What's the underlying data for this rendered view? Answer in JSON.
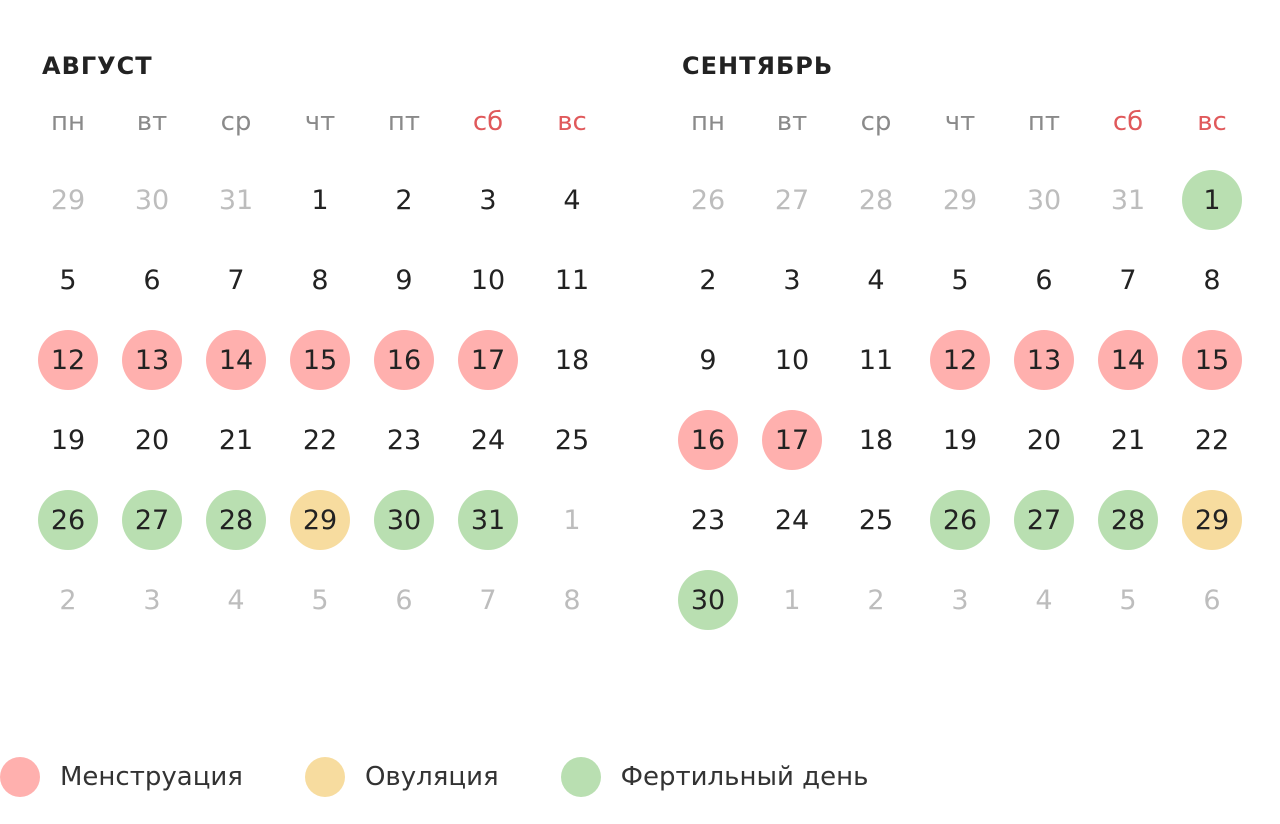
{
  "colors": {
    "menstruation": "#ffb0ae",
    "ovulation": "#f7dc9f",
    "fertile": "#b9dfb1",
    "weekend": "#e0595b",
    "muted": "#bdbdbd"
  },
  "weekdays": [
    "пн",
    "вт",
    "ср",
    "чт",
    "пт",
    "сб",
    "вс"
  ],
  "months": [
    {
      "title": "АВГУСТ",
      "days": [
        {
          "n": "29",
          "muted": true
        },
        {
          "n": "30",
          "muted": true
        },
        {
          "n": "31",
          "muted": true
        },
        {
          "n": "1"
        },
        {
          "n": "2"
        },
        {
          "n": "3"
        },
        {
          "n": "4"
        },
        {
          "n": "5"
        },
        {
          "n": "6"
        },
        {
          "n": "7"
        },
        {
          "n": "8"
        },
        {
          "n": "9"
        },
        {
          "n": "10"
        },
        {
          "n": "11"
        },
        {
          "n": "12",
          "type": "menstruation"
        },
        {
          "n": "13",
          "type": "menstruation"
        },
        {
          "n": "14",
          "type": "menstruation"
        },
        {
          "n": "15",
          "type": "menstruation"
        },
        {
          "n": "16",
          "type": "menstruation"
        },
        {
          "n": "17",
          "type": "menstruation"
        },
        {
          "n": "18"
        },
        {
          "n": "19"
        },
        {
          "n": "20"
        },
        {
          "n": "21"
        },
        {
          "n": "22"
        },
        {
          "n": "23"
        },
        {
          "n": "24"
        },
        {
          "n": "25"
        },
        {
          "n": "26",
          "type": "fertile"
        },
        {
          "n": "27",
          "type": "fertile"
        },
        {
          "n": "28",
          "type": "fertile"
        },
        {
          "n": "29",
          "type": "ovulation"
        },
        {
          "n": "30",
          "type": "fertile"
        },
        {
          "n": "31",
          "type": "fertile"
        },
        {
          "n": "1",
          "muted": true
        },
        {
          "n": "2",
          "muted": true
        },
        {
          "n": "3",
          "muted": true
        },
        {
          "n": "4",
          "muted": true
        },
        {
          "n": "5",
          "muted": true
        },
        {
          "n": "6",
          "muted": true
        },
        {
          "n": "7",
          "muted": true
        },
        {
          "n": "8",
          "muted": true
        }
      ]
    },
    {
      "title": "СЕНТЯБРЬ",
      "days": [
        {
          "n": "26",
          "muted": true
        },
        {
          "n": "27",
          "muted": true
        },
        {
          "n": "28",
          "muted": true
        },
        {
          "n": "29",
          "muted": true
        },
        {
          "n": "30",
          "muted": true
        },
        {
          "n": "31",
          "muted": true
        },
        {
          "n": "1",
          "type": "fertile"
        },
        {
          "n": "2"
        },
        {
          "n": "3"
        },
        {
          "n": "4"
        },
        {
          "n": "5"
        },
        {
          "n": "6"
        },
        {
          "n": "7"
        },
        {
          "n": "8"
        },
        {
          "n": "9"
        },
        {
          "n": "10"
        },
        {
          "n": "11"
        },
        {
          "n": "12",
          "type": "menstruation"
        },
        {
          "n": "13",
          "type": "menstruation"
        },
        {
          "n": "14",
          "type": "menstruation"
        },
        {
          "n": "15",
          "type": "menstruation"
        },
        {
          "n": "16",
          "type": "menstruation"
        },
        {
          "n": "17",
          "type": "menstruation"
        },
        {
          "n": "18"
        },
        {
          "n": "19"
        },
        {
          "n": "20"
        },
        {
          "n": "21"
        },
        {
          "n": "22"
        },
        {
          "n": "23"
        },
        {
          "n": "24"
        },
        {
          "n": "25"
        },
        {
          "n": "26",
          "type": "fertile"
        },
        {
          "n": "27",
          "type": "fertile"
        },
        {
          "n": "28",
          "type": "fertile"
        },
        {
          "n": "29",
          "type": "ovulation"
        },
        {
          "n": "30",
          "type": "fertile"
        },
        {
          "n": "1",
          "muted": true
        },
        {
          "n": "2",
          "muted": true
        },
        {
          "n": "3",
          "muted": true
        },
        {
          "n": "4",
          "muted": true
        },
        {
          "n": "5",
          "muted": true
        },
        {
          "n": "6",
          "muted": true
        }
      ]
    }
  ],
  "legend": {
    "menstruation": "Менструация",
    "ovulation": "Овуляция",
    "fertile": "Фертильный день"
  }
}
